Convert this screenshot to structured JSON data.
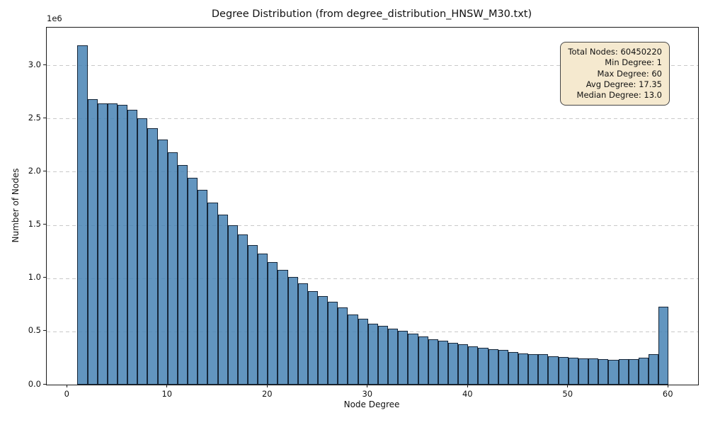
{
  "figure": {
    "title": "Degree Distribution (from degree_distribution_HNSW_M30.txt)"
  },
  "axes": {
    "xlabel": "Node Degree",
    "ylabel": "Number of Nodes",
    "offset_label": "1e6",
    "xtick_values": [
      0,
      10,
      20,
      30,
      40,
      50,
      60
    ],
    "xtick_labels": [
      "0",
      "10",
      "20",
      "30",
      "40",
      "50",
      "60"
    ],
    "ytick_values": [
      0,
      500000,
      1000000,
      1500000,
      2000000,
      2500000,
      3000000
    ],
    "ytick_labels": [
      "0.0",
      "0.5",
      "1.0",
      "1.5",
      "2.0",
      "2.5",
      "3.0"
    ]
  },
  "stats_box": {
    "lines": [
      "Total Nodes: 60450220",
      "Min Degree: 1",
      "Max Degree: 60",
      "Avg Degree: 17.35",
      "Median Degree: 13.0"
    ]
  },
  "colors": {
    "bar_fill": "steelblue (rgba(70,130,180,0.85))",
    "bar_edge": "#16202d",
    "grid": "#c9c9c9",
    "stats_bg": "#f5e9cf",
    "stats_border": "#454545"
  },
  "chart_data": {
    "type": "bar",
    "subtype": "histogram",
    "title": "Degree Distribution (from degree_distribution_HNSW_M30.txt)",
    "xlabel": "Node Degree",
    "ylabel": "Number of Nodes",
    "y_offset_multiplier": "1e6",
    "bin_width": 1,
    "x": [
      1,
      2,
      3,
      4,
      5,
      6,
      7,
      8,
      9,
      10,
      11,
      12,
      13,
      14,
      15,
      16,
      17,
      18,
      19,
      20,
      21,
      22,
      23,
      24,
      25,
      26,
      27,
      28,
      29,
      30,
      31,
      32,
      33,
      34,
      35,
      36,
      37,
      38,
      39,
      40,
      41,
      42,
      43,
      44,
      45,
      46,
      47,
      48,
      49,
      50,
      51,
      52,
      53,
      54,
      55,
      56,
      57,
      58,
      59
    ],
    "values": [
      3190000,
      2680000,
      2640000,
      2640000,
      2630000,
      2580000,
      2500000,
      2410000,
      2300000,
      2180000,
      2060000,
      1945000,
      1830000,
      1710000,
      1600000,
      1500000,
      1410000,
      1310000,
      1230000,
      1150000,
      1080000,
      1010000,
      950000,
      878000,
      830000,
      778000,
      727000,
      656000,
      622000,
      575000,
      551000,
      529000,
      505000,
      478000,
      450000,
      428000,
      410000,
      393000,
      378000,
      362000,
      349000,
      334000,
      323000,
      308000,
      294000,
      288000,
      283000,
      268000,
      260000,
      254000,
      249000,
      244000,
      238000,
      234000,
      242000,
      243000,
      255000,
      284000,
      733000
    ],
    "xlim": [
      -2.07,
      62.95
    ],
    "ylim": [
      0,
      3354000
    ],
    "xticks": [
      0,
      10,
      20,
      30,
      40,
      50,
      60
    ],
    "yticks": [
      0,
      500000,
      1000000,
      1500000,
      2000000,
      2500000,
      3000000
    ],
    "grid": "horizontal dashed gridlines at y ticks",
    "legend_position": "stats annotation box, upper right",
    "annotations": [
      "Total Nodes: 60450220",
      "Min Degree: 1",
      "Max Degree: 60",
      "Avg Degree: 17.35",
      "Median Degree: 13.0"
    ]
  }
}
